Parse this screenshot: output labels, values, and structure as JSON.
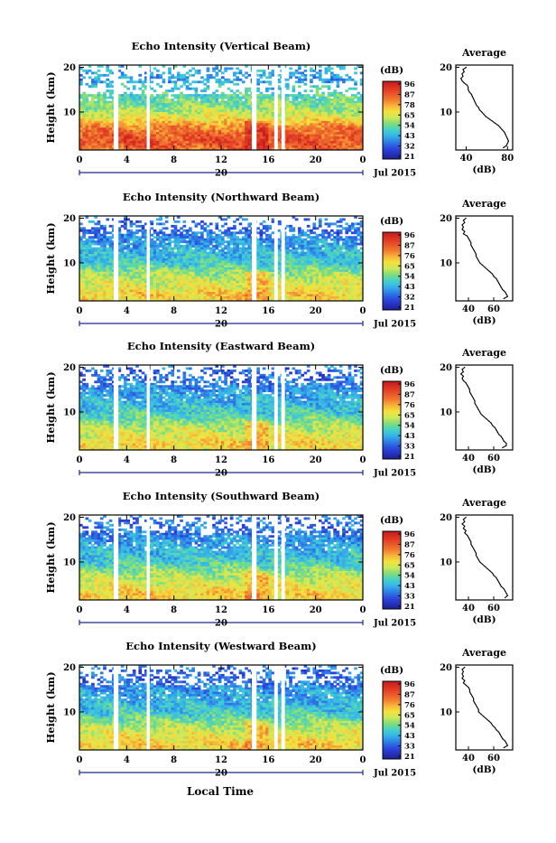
{
  "figure": {
    "xlabel": "Local Time",
    "date_label": "Jul 2015",
    "day_label": "20",
    "colorbar_unit": "(dB)",
    "colorbar_ticks_a": [
      "96",
      "87",
      "78",
      "65",
      "54",
      "43",
      "32",
      "21"
    ],
    "colorbar_ticks_b": [
      "96",
      "87",
      "76",
      "65",
      "54",
      "43",
      "32",
      "21"
    ],
    "colorbar_ticks_c": [
      "96",
      "87",
      "76",
      "65",
      "54",
      "43",
      "33",
      "21"
    ],
    "avg_title": "Average",
    "avg_xlabel": "(dB)",
    "colorbar_colors": [
      "#e02020",
      "#f07030",
      "#f5b030",
      "#f0e030",
      "#b8e040",
      "#60d070",
      "#30c0c0",
      "#30a0e0",
      "#3060e0",
      "#2030a0"
    ]
  },
  "chart_data": [
    {
      "type": "heatmap",
      "title": "Echo Intensity (Vertical Beam)",
      "ylabel": "Height (km)",
      "xlim": [
        0,
        24
      ],
      "ylim": [
        1.5,
        20.5
      ],
      "x_ticks": [
        "0",
        "4",
        "8",
        "12",
        "16",
        "20",
        "0"
      ],
      "y_ticks": [
        "20",
        "10"
      ],
      "colorbar": {
        "label": "(dB)",
        "ticks": [
          "96",
          "87",
          "78",
          "65",
          "54",
          "43",
          "32",
          "21"
        ]
      },
      "missing_time_bands": [
        [
          2.9,
          3.3
        ],
        [
          5.7,
          5.95
        ],
        [
          14.6,
          15.0
        ],
        [
          16.5,
          16.8
        ],
        [
          17.1,
          17.4
        ]
      ],
      "average_profile": {
        "title": "Average",
        "xlabel": "(dB)",
        "x_ticks": [
          "40",
          "80"
        ],
        "xlim": [
          30,
          85
        ],
        "y_ticks": [
          "20",
          "10"
        ],
        "points": [
          [
            40,
            20
          ],
          [
            37,
            19.5
          ],
          [
            38,
            19
          ],
          [
            36,
            18.5
          ],
          [
            37,
            18
          ],
          [
            35,
            17.5
          ],
          [
            36,
            17
          ],
          [
            38,
            16.5
          ],
          [
            41,
            16
          ],
          [
            42,
            15.5
          ],
          [
            42,
            15
          ],
          [
            43,
            14.5
          ],
          [
            45,
            14
          ],
          [
            46,
            13.5
          ],
          [
            47,
            13
          ],
          [
            48,
            12.5
          ],
          [
            49,
            12
          ],
          [
            50,
            11.5
          ],
          [
            52,
            11
          ],
          [
            53,
            10.5
          ],
          [
            55,
            10
          ],
          [
            57,
            9.5
          ],
          [
            59,
            9
          ],
          [
            62,
            8.5
          ],
          [
            65,
            8
          ],
          [
            68,
            7.5
          ],
          [
            71,
            7
          ],
          [
            73,
            6.5
          ],
          [
            75,
            6
          ],
          [
            77,
            5.5
          ],
          [
            78,
            5
          ],
          [
            79,
            4.5
          ],
          [
            80,
            4
          ],
          [
            81,
            3.5
          ],
          [
            80,
            3
          ],
          [
            79,
            2.5
          ],
          [
            76,
            2
          ]
        ]
      }
    },
    {
      "type": "heatmap",
      "title": "Echo Intensity (Northward Beam)",
      "ylabel": "Height (km)",
      "xlim": [
        0,
        24
      ],
      "ylim": [
        1.5,
        20.5
      ],
      "x_ticks": [
        "0",
        "4",
        "8",
        "12",
        "16",
        "20",
        "0"
      ],
      "y_ticks": [
        "20",
        "10"
      ],
      "colorbar": {
        "label": "(dB)",
        "ticks": [
          "96",
          "87",
          "76",
          "65",
          "54",
          "43",
          "32",
          "21"
        ]
      },
      "missing_time_bands": [
        [
          2.9,
          3.3
        ],
        [
          5.7,
          5.95
        ],
        [
          14.6,
          15.0
        ],
        [
          16.5,
          16.8
        ],
        [
          17.1,
          17.4
        ]
      ],
      "average_profile": {
        "title": "Average",
        "xlabel": "(dB)",
        "x_ticks": [
          "40",
          "60"
        ],
        "xlim": [
          30,
          75
        ],
        "y_ticks": [
          "20",
          "10"
        ],
        "points": [
          [
            38,
            20
          ],
          [
            36,
            19.5
          ],
          [
            37,
            19
          ],
          [
            35,
            18.5
          ],
          [
            36,
            18
          ],
          [
            35,
            17.5
          ],
          [
            37,
            17
          ],
          [
            36,
            16.5
          ],
          [
            39,
            16
          ],
          [
            40,
            15.5
          ],
          [
            41,
            15
          ],
          [
            42,
            14.5
          ],
          [
            42,
            14
          ],
          [
            43,
            13.5
          ],
          [
            44,
            13
          ],
          [
            45,
            12.5
          ],
          [
            46,
            12
          ],
          [
            46,
            11.5
          ],
          [
            47,
            11
          ],
          [
            48,
            10.5
          ],
          [
            49,
            10
          ],
          [
            51,
            9.5
          ],
          [
            53,
            9
          ],
          [
            55,
            8.5
          ],
          [
            57,
            8
          ],
          [
            59,
            7.5
          ],
          [
            60,
            7
          ],
          [
            62,
            6.5
          ],
          [
            63,
            6
          ],
          [
            64,
            5.5
          ],
          [
            65,
            5
          ],
          [
            66,
            4.5
          ],
          [
            67,
            4
          ],
          [
            69,
            3.5
          ],
          [
            70,
            3
          ],
          [
            71,
            2.5
          ],
          [
            68,
            2
          ]
        ]
      }
    },
    {
      "type": "heatmap",
      "title": "Echo Intensity (Eastward Beam)",
      "ylabel": "Height (km)",
      "xlim": [
        0,
        24
      ],
      "ylim": [
        1.5,
        20.5
      ],
      "x_ticks": [
        "0",
        "4",
        "8",
        "12",
        "16",
        "20",
        "0"
      ],
      "y_ticks": [
        "20",
        "10"
      ],
      "colorbar": {
        "label": "(dB)",
        "ticks": [
          "96",
          "87",
          "76",
          "65",
          "54",
          "43",
          "33",
          "21"
        ]
      },
      "missing_time_bands": [
        [
          2.9,
          3.3
        ],
        [
          5.7,
          5.95
        ],
        [
          14.6,
          15.0
        ],
        [
          16.5,
          16.8
        ],
        [
          17.1,
          17.4
        ]
      ],
      "average_profile": {
        "title": "Average",
        "xlabel": "(dB)",
        "x_ticks": [
          "40",
          "60"
        ],
        "xlim": [
          30,
          75
        ],
        "y_ticks": [
          "20",
          "10"
        ],
        "points": [
          [
            37,
            20
          ],
          [
            35,
            19.5
          ],
          [
            36,
            19
          ],
          [
            34,
            18.5
          ],
          [
            36,
            18
          ],
          [
            35,
            17.5
          ],
          [
            36,
            17
          ],
          [
            38,
            16.5
          ],
          [
            39,
            16
          ],
          [
            40,
            15.5
          ],
          [
            41,
            15
          ],
          [
            41,
            14.5
          ],
          [
            42,
            14
          ],
          [
            43,
            13.5
          ],
          [
            44,
            13
          ],
          [
            45,
            12.5
          ],
          [
            45,
            12
          ],
          [
            46,
            11.5
          ],
          [
            47,
            11
          ],
          [
            48,
            10.5
          ],
          [
            49,
            10
          ],
          [
            50,
            9.5
          ],
          [
            52,
            9
          ],
          [
            54,
            8.5
          ],
          [
            56,
            8
          ],
          [
            58,
            7.5
          ],
          [
            59,
            7
          ],
          [
            61,
            6.5
          ],
          [
            62,
            6
          ],
          [
            63,
            5.5
          ],
          [
            64,
            5
          ],
          [
            66,
            4.5
          ],
          [
            67,
            4
          ],
          [
            68,
            3.5
          ],
          [
            70,
            3
          ],
          [
            70,
            2.5
          ],
          [
            67,
            2
          ]
        ]
      }
    },
    {
      "type": "heatmap",
      "title": "Echo Intensity (Southward Beam)",
      "ylabel": "Height (km)",
      "xlim": [
        0,
        24
      ],
      "ylim": [
        1.5,
        20.5
      ],
      "x_ticks": [
        "0",
        "4",
        "8",
        "12",
        "16",
        "20",
        "0"
      ],
      "y_ticks": [
        "20",
        "10"
      ],
      "colorbar": {
        "label": "(dB)",
        "ticks": [
          "96",
          "87",
          "76",
          "65",
          "54",
          "43",
          "33",
          "21"
        ]
      },
      "missing_time_bands": [
        [
          2.9,
          3.3
        ],
        [
          5.7,
          5.95
        ],
        [
          14.6,
          15.0
        ],
        [
          16.5,
          16.8
        ],
        [
          17.1,
          17.4
        ]
      ],
      "average_profile": {
        "title": "Average",
        "xlabel": "(dB)",
        "x_ticks": [
          "40",
          "60"
        ],
        "xlim": [
          30,
          75
        ],
        "y_ticks": [
          "20",
          "10"
        ],
        "points": [
          [
            38,
            20
          ],
          [
            36,
            19.5
          ],
          [
            37,
            19
          ],
          [
            35,
            18.5
          ],
          [
            37,
            18
          ],
          [
            36,
            17.5
          ],
          [
            38,
            17
          ],
          [
            37,
            16.5
          ],
          [
            39,
            16
          ],
          [
            40,
            15.5
          ],
          [
            41,
            15
          ],
          [
            42,
            14.5
          ],
          [
            42,
            14
          ],
          [
            43,
            13.5
          ],
          [
            44,
            13
          ],
          [
            45,
            12.5
          ],
          [
            46,
            12
          ],
          [
            46,
            11.5
          ],
          [
            47,
            11
          ],
          [
            48,
            10.5
          ],
          [
            49,
            10
          ],
          [
            51,
            9.5
          ],
          [
            53,
            9
          ],
          [
            55,
            8.5
          ],
          [
            57,
            8
          ],
          [
            59,
            7.5
          ],
          [
            60,
            7
          ],
          [
            62,
            6.5
          ],
          [
            63,
            6
          ],
          [
            64,
            5.5
          ],
          [
            65,
            5
          ],
          [
            66,
            4.5
          ],
          [
            68,
            4
          ],
          [
            69,
            3.5
          ],
          [
            70,
            3
          ],
          [
            71,
            2.5
          ],
          [
            69,
            2
          ]
        ]
      }
    },
    {
      "type": "heatmap",
      "title": "Echo Intensity (Westward Beam)",
      "ylabel": "Height (km)",
      "xlim": [
        0,
        24
      ],
      "ylim": [
        1.5,
        20.5
      ],
      "x_ticks": [
        "0",
        "4",
        "8",
        "12",
        "16",
        "20",
        "0"
      ],
      "y_ticks": [
        "20",
        "10"
      ],
      "colorbar": {
        "label": "(dB)",
        "ticks": [
          "96",
          "87",
          "76",
          "65",
          "54",
          "43",
          "33",
          "21"
        ]
      },
      "missing_time_bands": [
        [
          2.9,
          3.3
        ],
        [
          5.7,
          5.95
        ],
        [
          14.6,
          15.0
        ],
        [
          16.5,
          16.8
        ],
        [
          17.1,
          17.4
        ]
      ],
      "average_profile": {
        "title": "Average",
        "xlabel": "(dB)",
        "x_ticks": [
          "40",
          "60"
        ],
        "xlim": [
          30,
          75
        ],
        "y_ticks": [
          "20",
          "10"
        ],
        "points": [
          [
            37,
            20
          ],
          [
            35,
            19.5
          ],
          [
            36,
            19
          ],
          [
            35,
            18.5
          ],
          [
            36,
            18
          ],
          [
            35,
            17.5
          ],
          [
            37,
            17
          ],
          [
            36,
            16.5
          ],
          [
            38,
            16
          ],
          [
            40,
            15.5
          ],
          [
            41,
            15
          ],
          [
            41,
            14.5
          ],
          [
            42,
            14
          ],
          [
            43,
            13.5
          ],
          [
            44,
            13
          ],
          [
            44,
            12.5
          ],
          [
            45,
            12
          ],
          [
            46,
            11.5
          ],
          [
            47,
            11
          ],
          [
            48,
            10.5
          ],
          [
            48,
            10
          ],
          [
            50,
            9.5
          ],
          [
            52,
            9
          ],
          [
            54,
            8.5
          ],
          [
            56,
            8
          ],
          [
            58,
            7.5
          ],
          [
            59,
            7
          ],
          [
            61,
            6.5
          ],
          [
            62,
            6
          ],
          [
            64,
            5.5
          ],
          [
            65,
            5
          ],
          [
            66,
            4.5
          ],
          [
            67,
            4
          ],
          [
            69,
            3.5
          ],
          [
            70,
            3
          ],
          [
            71,
            2.5
          ],
          [
            68,
            2
          ]
        ]
      }
    }
  ]
}
